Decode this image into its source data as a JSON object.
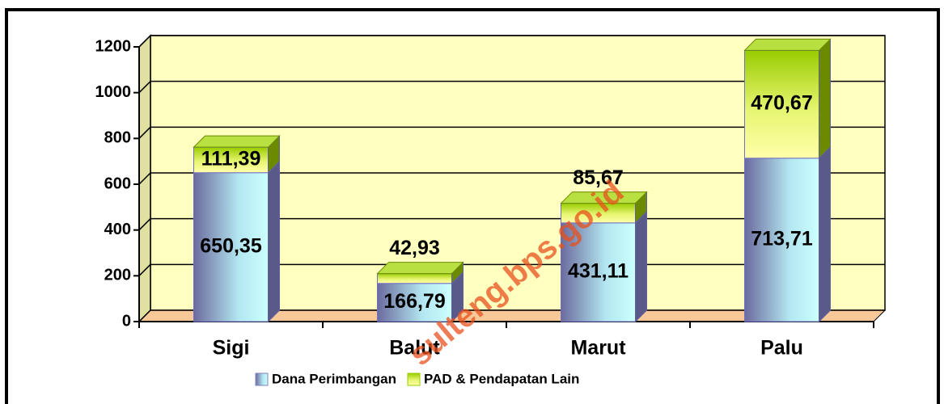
{
  "chart_data": {
    "type": "bar3d_stacked",
    "categories": [
      "Sigi",
      "Balut",
      "Marut",
      "Palu"
    ],
    "series": [
      {
        "name": "Dana Perimbangan",
        "color": "#8080c0",
        "values": [
          650.35,
          166.79,
          431.11,
          713.71
        ],
        "value_labels": [
          "650,35",
          "166,79",
          "431,11",
          "713,71"
        ]
      },
      {
        "name": "PAD & Pendapatan Lain",
        "color": "#99cc00",
        "values": [
          111.39,
          42.93,
          85.67,
          470.67
        ],
        "value_labels": [
          "111,39",
          "42,93",
          "85,67",
          "470,67"
        ]
      }
    ],
    "ylim": [
      0,
      1200
    ],
    "yticks": [
      0,
      200,
      400,
      600,
      800,
      1000,
      1200
    ],
    "grid": true,
    "legend": "bottom",
    "watermark": "sulteng.bps.go.id"
  }
}
